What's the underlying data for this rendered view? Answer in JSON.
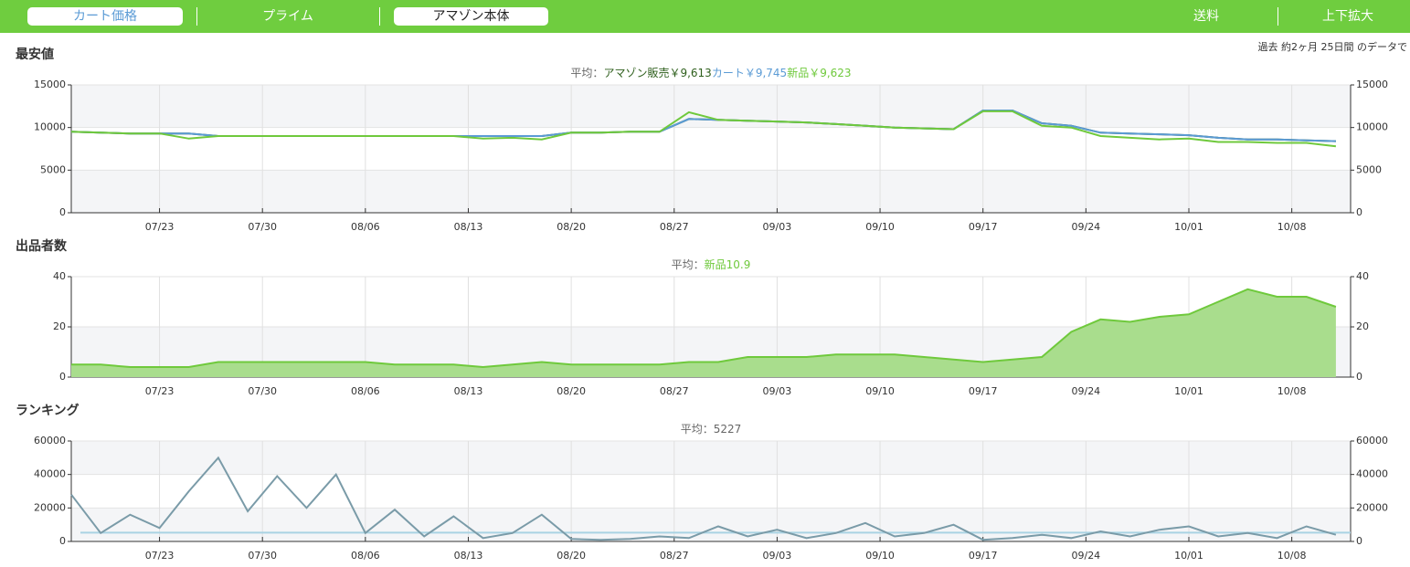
{
  "toolbar": {
    "buttons": [
      "カート価格",
      "プライム",
      "アマゾン本体",
      "送料",
      "上下拡大"
    ]
  },
  "period_note": "過去 約2ヶ月 25日間 のデータで",
  "chart_data": [
    {
      "type": "line",
      "title": "最安値",
      "average_prefix": "平均：",
      "x": [
        "07/17",
        "07/19",
        "07/21",
        "07/23",
        "07/25",
        "07/27",
        "07/29",
        "07/31",
        "08/02",
        "08/04",
        "08/06",
        "08/08",
        "08/10",
        "08/12",
        "08/14",
        "08/16",
        "08/18",
        "08/20",
        "08/22",
        "08/24",
        "08/26",
        "08/28",
        "08/30",
        "09/01",
        "09/03",
        "09/05",
        "09/07",
        "09/09",
        "09/11",
        "09/13",
        "09/15",
        "09/17",
        "09/19",
        "09/21",
        "09/23",
        "09/25",
        "09/27",
        "09/29",
        "10/01",
        "10/03",
        "10/05",
        "10/07",
        "10/09",
        "10/11"
      ],
      "xlim": [
        "07/17",
        "10/12"
      ],
      "xticks": [
        "07/23",
        "07/30",
        "08/06",
        "08/13",
        "08/20",
        "08/27",
        "09/03",
        "09/10",
        "09/17",
        "09/24",
        "10/01",
        "10/08"
      ],
      "ylim": [
        0,
        15000
      ],
      "yticks": [
        0,
        5000,
        10000,
        15000
      ],
      "grid": true,
      "series": [
        {
          "name": "アマゾン販売",
          "average": 9613,
          "average_label": "￥9,613",
          "color": "#2e5f1c",
          "values": [
            9500,
            9400,
            9300,
            9300,
            9300,
            9000,
            9000,
            9000,
            9000,
            9000,
            9000,
            9000,
            9000,
            9000,
            9000,
            9000,
            9000,
            9400,
            9400,
            9500,
            9500,
            11000,
            10900,
            10800,
            10700,
            10600,
            10400,
            10200,
            10000,
            9900,
            9800,
            12000,
            12000,
            10500,
            10200,
            9400,
            9300,
            9200,
            9100,
            8800,
            8600,
            8600,
            8500,
            8400
          ]
        },
        {
          "name": "カート",
          "average": 9745,
          "average_label": "￥9,745",
          "color": "#5b9bd5",
          "values": [
            9500,
            9400,
            9300,
            9300,
            9300,
            9000,
            9000,
            9000,
            9000,
            9000,
            9000,
            9000,
            9000,
            9000,
            9000,
            9000,
            9000,
            9400,
            9400,
            9500,
            9500,
            11000,
            10900,
            10800,
            10700,
            10600,
            10400,
            10200,
            10000,
            9900,
            9800,
            12000,
            12000,
            10500,
            10200,
            9400,
            9300,
            9200,
            9100,
            8800,
            8600,
            8600,
            8500,
            8400
          ]
        },
        {
          "name": "新品",
          "average": 9623,
          "average_label": "￥9,623",
          "color": "#6fc93c",
          "values": [
            9500,
            9400,
            9300,
            9300,
            8700,
            9000,
            9000,
            9000,
            9000,
            9000,
            9000,
            9000,
            9000,
            9000,
            8700,
            8800,
            8600,
            9400,
            9400,
            9500,
            9500,
            11800,
            10900,
            10800,
            10700,
            10600,
            10400,
            10200,
            10000,
            9900,
            9800,
            11900,
            11900,
            10200,
            10000,
            9000,
            8800,
            8600,
            8700,
            8300,
            8300,
            8200,
            8200,
            7800
          ]
        }
      ]
    },
    {
      "type": "area",
      "title": "出品者数",
      "average_prefix": "平均：",
      "x": [
        "07/17",
        "07/19",
        "07/21",
        "07/23",
        "07/25",
        "07/27",
        "07/29",
        "07/31",
        "08/02",
        "08/04",
        "08/06",
        "08/08",
        "08/10",
        "08/12",
        "08/14",
        "08/16",
        "08/18",
        "08/20",
        "08/22",
        "08/24",
        "08/26",
        "08/28",
        "08/30",
        "09/01",
        "09/03",
        "09/05",
        "09/07",
        "09/09",
        "09/11",
        "09/13",
        "09/15",
        "09/17",
        "09/19",
        "09/21",
        "09/23",
        "09/25",
        "09/27",
        "09/29",
        "10/01",
        "10/03",
        "10/05",
        "10/07",
        "10/09",
        "10/11"
      ],
      "xlim": [
        "07/17",
        "10/12"
      ],
      "xticks": [
        "07/23",
        "07/30",
        "08/06",
        "08/13",
        "08/20",
        "08/27",
        "09/03",
        "09/10",
        "09/17",
        "09/24",
        "10/01",
        "10/08"
      ],
      "ylim": [
        0,
        40
      ],
      "yticks": [
        0,
        20,
        40
      ],
      "grid": true,
      "series": [
        {
          "name": "新品",
          "average": 10.9,
          "color": "#6fc93c",
          "fill": "#a9dd8d",
          "values": [
            5,
            5,
            4,
            4,
            4,
            6,
            6,
            6,
            6,
            6,
            6,
            5,
            5,
            5,
            4,
            5,
            6,
            5,
            5,
            5,
            5,
            6,
            6,
            8,
            8,
            8,
            9,
            9,
            9,
            8,
            7,
            6,
            7,
            8,
            18,
            23,
            22,
            24,
            25,
            30,
            35,
            32,
            32,
            28
          ]
        }
      ]
    },
    {
      "type": "line",
      "title": "ランキング",
      "average_prefix": "平均：",
      "average": 5227,
      "average_color": "#a9d3e3",
      "x": [
        "07/17",
        "07/19",
        "07/21",
        "07/23",
        "07/25",
        "07/27",
        "07/29",
        "07/31",
        "08/02",
        "08/04",
        "08/06",
        "08/08",
        "08/10",
        "08/12",
        "08/14",
        "08/16",
        "08/18",
        "08/20",
        "08/22",
        "08/24",
        "08/26",
        "08/28",
        "08/30",
        "09/01",
        "09/03",
        "09/05",
        "09/07",
        "09/09",
        "09/11",
        "09/13",
        "09/15",
        "09/17",
        "09/19",
        "09/21",
        "09/23",
        "09/25",
        "09/27",
        "09/29",
        "10/01",
        "10/03",
        "10/05",
        "10/07",
        "10/09",
        "10/11"
      ],
      "xlim": [
        "07/17",
        "10/12"
      ],
      "xticks": [
        "07/23",
        "07/30",
        "08/06",
        "08/13",
        "08/20",
        "08/27",
        "09/03",
        "09/10",
        "09/17",
        "09/24",
        "10/01",
        "10/08"
      ],
      "ylim": [
        0,
        60000
      ],
      "yticks": [
        0,
        20000,
        40000,
        60000
      ],
      "grid": true,
      "series": [
        {
          "color": "#7a9ba8",
          "values": [
            28000,
            5000,
            16000,
            8000,
            30000,
            50000,
            18000,
            39000,
            20000,
            40000,
            5000,
            19000,
            3000,
            15000,
            2000,
            5000,
            16000,
            1500,
            1000,
            1500,
            3000,
            2000,
            9000,
            3000,
            7000,
            2000,
            5000,
            11000,
            3000,
            5000,
            10000,
            1000,
            2000,
            4000,
            2000,
            6000,
            3000,
            7000,
            9000,
            3000,
            5000,
            2000,
            9000,
            4000
          ]
        }
      ]
    }
  ]
}
